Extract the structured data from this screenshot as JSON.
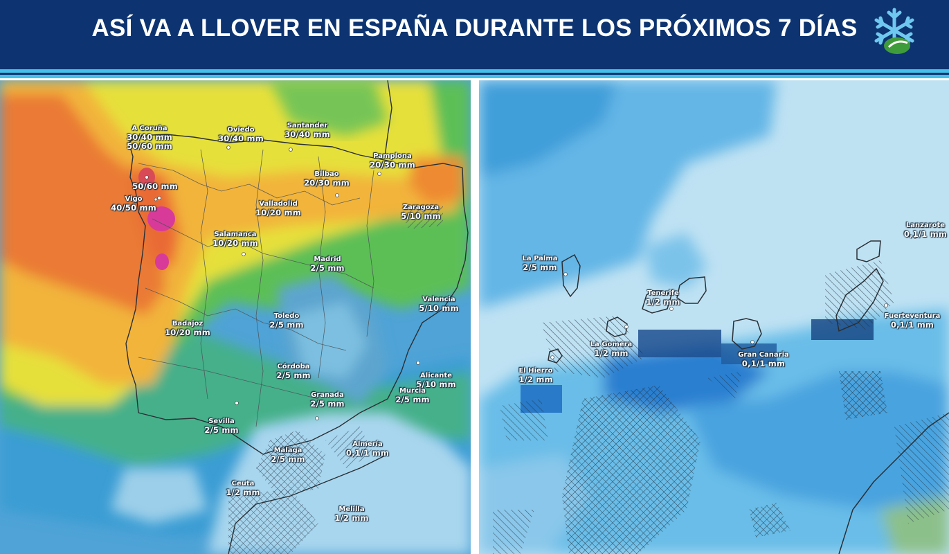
{
  "header": {
    "title": "ASÍ VA A LLOVER EN ESPAÑA DURANTE LOS PRÓXIMOS 7 DÍAS",
    "logo_icon": "snowflake-logo-icon"
  },
  "colors": {
    "header_bg": "#0d3470",
    "stripe": "#45c0e8",
    "precip_high": "#e0362c",
    "precip_mid": "#f29a2a",
    "precip_low": "#f0e23a",
    "precip_lower": "#3fa85a",
    "precip_min": "#7fc5e8"
  },
  "peninsula": {
    "labels": [
      {
        "name": "A Coruña",
        "value": "30/40 mm",
        "value2": "50/60 mm"
      },
      {
        "name": "Oviedo",
        "value": "30/40 mm"
      },
      {
        "name": "Santander",
        "value": "30/40 mm"
      },
      {
        "name": "Pamplona",
        "value": "20/30 mm"
      },
      {
        "name": "Bilbao",
        "value": "20/30 mm"
      },
      {
        "name": "",
        "value": "50/60 mm"
      },
      {
        "name": "Vigo",
        "value": "40/50 mm"
      },
      {
        "name": "Valladolid",
        "value": "10/20 mm"
      },
      {
        "name": "Zaragoza",
        "value": "5/10 mm"
      },
      {
        "name": "Salamanca",
        "value": "10/20 mm"
      },
      {
        "name": "Madrid",
        "value": "2/5 mm"
      },
      {
        "name": "Valencia",
        "value": "5/10 mm"
      },
      {
        "name": "Toledo",
        "value": "2/5 mm"
      },
      {
        "name": "Badajoz",
        "value": "10/20 mm"
      },
      {
        "name": "Córdoba",
        "value": "2/5 mm"
      },
      {
        "name": "Alicante",
        "value": "5/10 mm"
      },
      {
        "name": "Granada",
        "value": "2/5 mm"
      },
      {
        "name": "Murcia",
        "value": "2/5 mm"
      },
      {
        "name": "Sevilla",
        "value": "2/5 mm"
      },
      {
        "name": "Almería",
        "value": "0,1/1 mm"
      },
      {
        "name": "Málaga",
        "value": "2/5 mm"
      },
      {
        "name": "Ceuta",
        "value": "1/2 mm"
      },
      {
        "name": "Melilla",
        "value": "1/2 mm"
      }
    ]
  },
  "canarias": {
    "labels": [
      {
        "name": "Lanzarote",
        "value": "0,1/1 mm"
      },
      {
        "name": "La Palma",
        "value": "2/5 mm"
      },
      {
        "name": "Tenerife",
        "value": "1/2 mm"
      },
      {
        "name": "Fuerteventura",
        "value": "0,1/1 mm"
      },
      {
        "name": "La Gomera",
        "value": "1/2 mm"
      },
      {
        "name": "Gran Canaria",
        "value": "0,1/1 mm"
      },
      {
        "name": "El Hierro",
        "value": "1/2 mm"
      }
    ]
  }
}
